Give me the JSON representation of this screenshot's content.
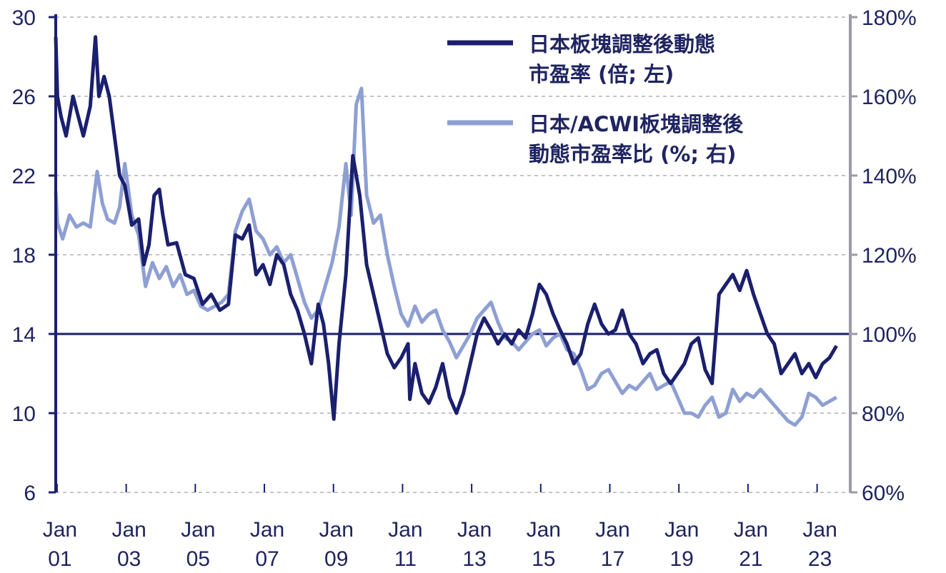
{
  "chart_data": {
    "type": "line",
    "title": "",
    "colors": {
      "japan_pe": "#1a1f6e",
      "relative_pe": "#8e9fd3",
      "reference_line": "#1a1f6e",
      "grid": "#b0b0b0",
      "left_axis": "#1a1f6e",
      "right_axis": "#9b9aa5",
      "text": "#1f2461"
    },
    "left_axis": {
      "ylim": [
        6,
        30
      ],
      "ticks": [
        6,
        10,
        14,
        18,
        22,
        26,
        30
      ],
      "tick_labels": [
        "6",
        "10",
        "14",
        "18",
        "22",
        "26",
        "30"
      ]
    },
    "right_axis": {
      "ylim": [
        60,
        180
      ],
      "ticks": [
        60,
        80,
        100,
        120,
        140,
        160,
        180
      ],
      "tick_labels": [
        "60%",
        "80%",
        "100%",
        "120%",
        "140%",
        "160%",
        "180%"
      ]
    },
    "x_axis": {
      "range": [
        2001.0,
        2024.0
      ],
      "ticks": [
        2001,
        2003,
        2005,
        2007,
        2009,
        2011,
        2013,
        2015,
        2017,
        2019,
        2021,
        2023
      ],
      "tick_labels": [
        [
          "Jan",
          "01"
        ],
        [
          "Jan",
          "03"
        ],
        [
          "Jan",
          "05"
        ],
        [
          "Jan",
          "07"
        ],
        [
          "Jan",
          "09"
        ],
        [
          "Jan",
          "11"
        ],
        [
          "Jan",
          "13"
        ],
        [
          "Jan",
          "15"
        ],
        [
          "Jan",
          "17"
        ],
        [
          "Jan",
          "19"
        ],
        [
          "Jan",
          "21"
        ],
        [
          "Jan",
          "23"
        ]
      ]
    },
    "reference_line": {
      "axis": "left",
      "value": 14
    },
    "legend": {
      "position": "top-right",
      "entries": [
        {
          "lines": [
            "日本板塊調整後動態",
            "市盈率 (倍; 左)"
          ]
        },
        {
          "lines": [
            "日本/ACWI板塊調整後",
            "動態市盈率比 (%; 右)"
          ]
        }
      ]
    },
    "series": [
      {
        "name": "日本板塊調整後動態市盈率 (倍; 左)",
        "axis": "left",
        "x": [
          2001.0,
          2001.05,
          2001.15,
          2001.3,
          2001.5,
          2001.65,
          2001.8,
          2002.0,
          2002.15,
          2002.25,
          2002.4,
          2002.55,
          2002.7,
          2002.85,
          2003.0,
          2003.2,
          2003.4,
          2003.55,
          2003.7,
          2003.85,
          2004.0,
          2004.1,
          2004.25,
          2004.5,
          2004.75,
          2005.0,
          2005.25,
          2005.5,
          2005.75,
          2006.0,
          2006.2,
          2006.4,
          2006.6,
          2006.8,
          2007.0,
          2007.2,
          2007.4,
          2007.6,
          2007.8,
          2008.0,
          2008.2,
          2008.4,
          2008.6,
          2008.75,
          2008.9,
          2009.05,
          2009.2,
          2009.4,
          2009.6,
          2009.8,
          2010.0,
          2010.2,
          2010.4,
          2010.6,
          2010.8,
          2011.0,
          2011.2,
          2011.25,
          2011.4,
          2011.6,
          2011.8,
          2012.0,
          2012.2,
          2012.4,
          2012.6,
          2012.8,
          2013.0,
          2013.2,
          2013.4,
          2013.6,
          2013.8,
          2014.0,
          2014.2,
          2014.4,
          2014.6,
          2014.8,
          2015.0,
          2015.2,
          2015.4,
          2015.6,
          2015.8,
          2016.0,
          2016.2,
          2016.4,
          2016.6,
          2016.8,
          2017.0,
          2017.2,
          2017.4,
          2017.6,
          2017.8,
          2018.0,
          2018.2,
          2018.4,
          2018.6,
          2018.8,
          2019.0,
          2019.2,
          2019.4,
          2019.6,
          2019.8,
          2020.0,
          2020.2,
          2020.4,
          2020.6,
          2020.8,
          2021.0,
          2021.2,
          2021.4,
          2021.6,
          2021.8,
          2022.0,
          2022.2,
          2022.4,
          2022.6,
          2022.8,
          2023.0,
          2023.2,
          2023.4,
          2023.6
        ],
        "values": [
          29.0,
          26.0,
          25.0,
          24.0,
          26.0,
          25.0,
          24.0,
          25.5,
          29.0,
          26.0,
          27.0,
          26.0,
          24.0,
          22.0,
          21.5,
          19.5,
          19.8,
          17.5,
          18.5,
          21.0,
          21.3,
          20.0,
          18.5,
          18.6,
          17.0,
          16.8,
          15.5,
          16.0,
          15.2,
          15.5,
          19.0,
          18.8,
          19.5,
          17.0,
          17.5,
          16.5,
          18.0,
          17.5,
          16.0,
          15.2,
          14.0,
          12.5,
          15.5,
          14.5,
          12.5,
          9.7,
          13.5,
          17.0,
          23.0,
          21.0,
          17.5,
          16.0,
          14.5,
          13.0,
          12.3,
          12.8,
          13.5,
          10.7,
          12.5,
          11.0,
          10.5,
          11.3,
          12.5,
          10.8,
          10.0,
          11.0,
          12.5,
          14.0,
          14.8,
          14.2,
          13.5,
          14.0,
          13.5,
          14.2,
          13.8,
          15.0,
          16.5,
          16.0,
          15.0,
          14.2,
          13.5,
          12.5,
          13.0,
          14.5,
          15.5,
          14.5,
          14.0,
          14.2,
          15.2,
          14.0,
          13.5,
          12.5,
          13.0,
          13.2,
          12.0,
          11.5,
          12.0,
          12.5,
          13.5,
          13.8,
          12.2,
          11.5,
          16.0,
          16.5,
          17.0,
          16.2,
          17.2,
          16.0,
          15.0,
          14.0,
          13.5,
          12.0,
          12.5,
          13.0,
          12.0,
          12.5,
          11.8,
          12.5,
          12.8,
          13.4
        ]
      },
      {
        "name": "日本/ACWI板塊調整後動態市盈率比 (%; 右)",
        "axis": "right",
        "x": [
          2001.0,
          2001.05,
          2001.2,
          2001.4,
          2001.6,
          2001.8,
          2002.0,
          2002.2,
          2002.35,
          2002.5,
          2002.7,
          2002.85,
          2003.0,
          2003.2,
          2003.4,
          2003.6,
          2003.8,
          2004.0,
          2004.2,
          2004.4,
          2004.6,
          2004.8,
          2005.0,
          2005.2,
          2005.4,
          2005.6,
          2005.8,
          2006.0,
          2006.2,
          2006.4,
          2006.6,
          2006.8,
          2007.0,
          2007.2,
          2007.4,
          2007.6,
          2007.8,
          2008.0,
          2008.2,
          2008.4,
          2008.6,
          2008.8,
          2009.0,
          2009.2,
          2009.4,
          2009.55,
          2009.7,
          2009.85,
          2010.0,
          2010.2,
          2010.4,
          2010.6,
          2010.8,
          2011.0,
          2011.2,
          2011.4,
          2011.6,
          2011.8,
          2012.0,
          2012.2,
          2012.4,
          2012.6,
          2012.8,
          2013.0,
          2013.2,
          2013.4,
          2013.6,
          2013.8,
          2014.0,
          2014.2,
          2014.4,
          2014.6,
          2014.8,
          2015.0,
          2015.2,
          2015.4,
          2015.6,
          2015.8,
          2016.0,
          2016.2,
          2016.4,
          2016.6,
          2016.8,
          2017.0,
          2017.2,
          2017.4,
          2017.6,
          2017.8,
          2018.0,
          2018.2,
          2018.4,
          2018.6,
          2018.8,
          2019.0,
          2019.2,
          2019.4,
          2019.6,
          2019.8,
          2020.0,
          2020.2,
          2020.4,
          2020.6,
          2020.8,
          2021.0,
          2021.2,
          2021.4,
          2021.6,
          2021.8,
          2022.0,
          2022.2,
          2022.4,
          2022.6,
          2022.8,
          2023.0,
          2023.2,
          2023.4,
          2023.6
        ],
        "values": [
          136.0,
          128.0,
          124.0,
          130.0,
          127.0,
          128.0,
          127.0,
          141.0,
          133.0,
          129.0,
          128.0,
          132.0,
          143.0,
          130.0,
          125.0,
          112.0,
          118.0,
          114.0,
          117.0,
          112.0,
          115.0,
          110.0,
          111.0,
          107.0,
          106.0,
          107.0,
          108.0,
          110.0,
          126.0,
          131.0,
          134.0,
          126.0,
          124.0,
          120.0,
          122.0,
          118.0,
          120.0,
          114.0,
          108.0,
          104.0,
          106.0,
          112.0,
          118.0,
          127.0,
          143.0,
          130.0,
          158.0,
          162.0,
          135.0,
          128.0,
          130.0,
          120.0,
          112.0,
          105.0,
          102.0,
          107.0,
          103.0,
          105.0,
          106.0,
          101.0,
          98.0,
          94.0,
          97.0,
          100.0,
          104.0,
          106.0,
          108.0,
          103.0,
          99.0,
          98.0,
          96.0,
          98.0,
          100.0,
          101.0,
          97.0,
          99.0,
          100.0,
          96.0,
          95.0,
          91.0,
          86.0,
          87.0,
          90.0,
          91.0,
          88.0,
          85.0,
          87.0,
          86.0,
          88.0,
          90.0,
          86.0,
          87.0,
          88.0,
          84.0,
          80.0,
          80.0,
          79.0,
          82.0,
          84.0,
          79.0,
          80.0,
          86.0,
          83.0,
          85.0,
          84.0,
          86.0,
          84.0,
          82.0,
          80.0,
          78.0,
          77.0,
          79.0,
          85.0,
          84.0,
          82.0,
          83.0,
          84.0
        ]
      }
    ]
  }
}
